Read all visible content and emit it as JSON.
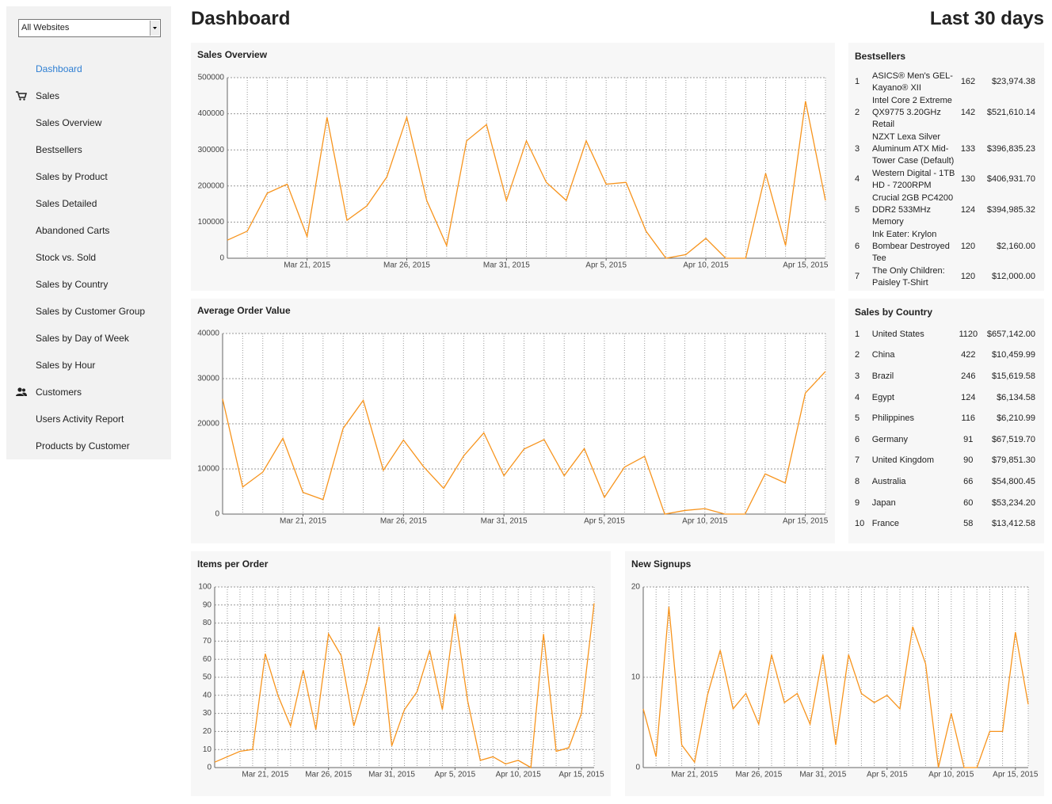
{
  "sidebar": {
    "website_select": "All Websites",
    "dashboard": "Dashboard",
    "sections": [
      {
        "title": "Sales",
        "items": [
          "Sales Overview",
          "Bestsellers",
          "Sales by Product",
          "Sales Detailed",
          "Abandoned Carts",
          "Stock vs. Sold",
          "Sales by Country",
          "Sales by Customer Group",
          "Sales by Day of Week",
          "Sales by Hour"
        ]
      },
      {
        "title": "Customers",
        "items": [
          "Users Activity Report",
          "Products by Customer"
        ]
      }
    ]
  },
  "header": {
    "title": "Dashboard",
    "period": "Last 30 days"
  },
  "chart_data": [
    {
      "type": "line",
      "title": "Sales Overview",
      "color": "#f7941d",
      "grid": true,
      "x": [
        "2015-03-17",
        "2015-03-18",
        "2015-03-19",
        "2015-03-20",
        "2015-03-21",
        "2015-03-22",
        "2015-03-23",
        "2015-03-24",
        "2015-03-25",
        "2015-03-26",
        "2015-03-27",
        "2015-03-28",
        "2015-03-29",
        "2015-03-30",
        "2015-03-31",
        "2015-04-01",
        "2015-04-02",
        "2015-04-03",
        "2015-04-04",
        "2015-04-05",
        "2015-04-06",
        "2015-04-07",
        "2015-04-08",
        "2015-04-09",
        "2015-04-10",
        "2015-04-11",
        "2015-04-12",
        "2015-04-13",
        "2015-04-14",
        "2015-04-15",
        "2015-04-16"
      ],
      "values": [
        50000,
        75000,
        180000,
        205000,
        60000,
        390000,
        105000,
        145000,
        225000,
        390000,
        160000,
        35000,
        325000,
        370000,
        160000,
        325000,
        210000,
        160000,
        325000,
        205000,
        210000,
        75000,
        0,
        10000,
        55000,
        0,
        0,
        235000,
        35000,
        435000,
        160000
      ],
      "xlim": [
        "2015-03-17",
        "2015-04-16"
      ],
      "xticks": [
        {
          "value": "2015-03-21",
          "label": "Mar 21, 2015"
        },
        {
          "value": "2015-03-26",
          "label": "Mar 26, 2015"
        },
        {
          "value": "2015-03-31",
          "label": "Mar 31, 2015"
        },
        {
          "value": "2015-04-05",
          "label": "Apr 5, 2015"
        },
        {
          "value": "2015-04-10",
          "label": "Apr 10, 2015"
        },
        {
          "value": "2015-04-15",
          "label": "Apr 15, 2015"
        }
      ],
      "ylim": [
        0,
        500000
      ],
      "yticks": [
        0,
        100000,
        200000,
        300000,
        400000,
        500000
      ]
    },
    {
      "type": "line",
      "title": "Average Order Value",
      "color": "#f7941d",
      "grid": true,
      "x": [
        "2015-03-17",
        "2015-03-18",
        "2015-03-19",
        "2015-03-20",
        "2015-03-21",
        "2015-03-22",
        "2015-03-23",
        "2015-03-24",
        "2015-03-25",
        "2015-03-26",
        "2015-03-27",
        "2015-03-28",
        "2015-03-29",
        "2015-03-30",
        "2015-03-31",
        "2015-04-01",
        "2015-04-02",
        "2015-04-03",
        "2015-04-04",
        "2015-04-05",
        "2015-04-06",
        "2015-04-07",
        "2015-04-08",
        "2015-04-09",
        "2015-04-10",
        "2015-04-11",
        "2015-04-12",
        "2015-04-13",
        "2015-04-14",
        "2015-04-15",
        "2015-04-16"
      ],
      "values": [
        25500,
        6000,
        9300,
        16800,
        4800,
        3200,
        19000,
        25200,
        9700,
        16400,
        10500,
        5700,
        12900,
        18000,
        8500,
        14400,
        16500,
        8500,
        14500,
        3700,
        10400,
        12800,
        0,
        800,
        1200,
        0,
        0,
        8900,
        6900,
        26800,
        31600
      ],
      "xlim": [
        "2015-03-17",
        "2015-04-16"
      ],
      "xticks": [
        {
          "value": "2015-03-21",
          "label": "Mar 21, 2015"
        },
        {
          "value": "2015-03-26",
          "label": "Mar 26, 2015"
        },
        {
          "value": "2015-03-31",
          "label": "Mar 31, 2015"
        },
        {
          "value": "2015-04-05",
          "label": "Apr 5, 2015"
        },
        {
          "value": "2015-04-10",
          "label": "Apr 10, 2015"
        },
        {
          "value": "2015-04-15",
          "label": "Apr 15, 2015"
        }
      ],
      "ylim": [
        0,
        40000
      ],
      "yticks": [
        0,
        10000,
        20000,
        30000,
        40000
      ]
    },
    {
      "type": "line",
      "title": "Items per Order",
      "color": "#f7941d",
      "grid": true,
      "x": [
        "2015-03-17",
        "2015-03-18",
        "2015-03-19",
        "2015-03-20",
        "2015-03-21",
        "2015-03-22",
        "2015-03-23",
        "2015-03-24",
        "2015-03-25",
        "2015-03-26",
        "2015-03-27",
        "2015-03-28",
        "2015-03-29",
        "2015-03-30",
        "2015-03-31",
        "2015-04-01",
        "2015-04-02",
        "2015-04-03",
        "2015-04-04",
        "2015-04-05",
        "2015-04-06",
        "2015-04-07",
        "2015-04-08",
        "2015-04-09",
        "2015-04-10",
        "2015-04-11",
        "2015-04-12",
        "2015-04-13",
        "2015-04-14",
        "2015-04-15",
        "2015-04-16"
      ],
      "values": [
        3,
        6,
        9,
        10,
        63,
        40,
        23,
        54,
        21,
        74,
        62,
        23,
        47,
        78,
        12,
        32,
        42,
        65,
        32,
        85,
        37,
        4,
        6,
        2,
        4,
        0,
        74,
        9,
        11,
        30,
        91
      ],
      "xlim": [
        "2015-03-17",
        "2015-04-16"
      ],
      "xticks": [
        {
          "value": "2015-03-21",
          "label": "Mar 21, 2015"
        },
        {
          "value": "2015-03-26",
          "label": "Mar 26, 2015"
        },
        {
          "value": "2015-03-31",
          "label": "Mar 31, 2015"
        },
        {
          "value": "2015-04-05",
          "label": "Apr 5, 2015"
        },
        {
          "value": "2015-04-10",
          "label": "Apr 10, 2015"
        },
        {
          "value": "2015-04-15",
          "label": "Apr 15, 2015"
        }
      ],
      "ylim": [
        0,
        100
      ],
      "yticks": [
        0,
        10,
        20,
        30,
        40,
        50,
        60,
        70,
        80,
        90,
        100
      ]
    },
    {
      "type": "line",
      "title": "New Signups",
      "color": "#f7941d",
      "grid": true,
      "x": [
        "2015-03-17",
        "2015-03-18",
        "2015-03-19",
        "2015-03-20",
        "2015-03-21",
        "2015-03-22",
        "2015-03-23",
        "2015-03-24",
        "2015-03-25",
        "2015-03-26",
        "2015-03-27",
        "2015-03-28",
        "2015-03-29",
        "2015-03-30",
        "2015-03-31",
        "2015-04-01",
        "2015-04-02",
        "2015-04-03",
        "2015-04-04",
        "2015-04-05",
        "2015-04-06",
        "2015-04-07",
        "2015-04-08",
        "2015-04-09",
        "2015-04-10",
        "2015-04-11",
        "2015-04-12",
        "2015-04-13",
        "2015-04-14",
        "2015-04-15",
        "2015-04-16"
      ],
      "values": [
        6.5,
        1.2,
        17.8,
        2.5,
        0.6,
        8,
        13,
        6.5,
        8.2,
        4.8,
        12.5,
        7.2,
        8.2,
        4.8,
        12.5,
        2.5,
        12.5,
        8.2,
        7.2,
        8,
        6.5,
        15.6,
        11.5,
        0,
        6,
        0,
        0,
        4,
        4,
        15,
        7
      ],
      "xlim": [
        "2015-03-17",
        "2015-04-16"
      ],
      "xticks": [
        {
          "value": "2015-03-21",
          "label": "Mar 21, 2015"
        },
        {
          "value": "2015-03-26",
          "label": "Mar 26, 2015"
        },
        {
          "value": "2015-03-31",
          "label": "Mar 31, 2015"
        },
        {
          "value": "2015-04-05",
          "label": "Apr 5, 2015"
        },
        {
          "value": "2015-04-10",
          "label": "Apr 10, 2015"
        },
        {
          "value": "2015-04-15",
          "label": "Apr 15, 2015"
        }
      ],
      "ylim": [
        0,
        20
      ],
      "yticks": [
        0,
        10,
        20
      ]
    }
  ],
  "bestsellers": {
    "title": "Bestsellers",
    "rows": [
      [
        1,
        "ASICS® Men's GEL-Kayano® XII",
        162,
        "$23,974.38"
      ],
      [
        2,
        "Intel Core 2 Extreme QX9775 3.20GHz Retail",
        142,
        "$521,610.14"
      ],
      [
        3,
        "NZXT Lexa Silver Aluminum ATX Mid-Tower Case (Default)",
        133,
        "$396,835.23"
      ],
      [
        4,
        "Western Digital - 1TB HD - 7200RPM",
        130,
        "$406,931.70"
      ],
      [
        5,
        "Crucial 2GB PC4200 DDR2 533MHz Memory",
        124,
        "$394,985.32"
      ],
      [
        6,
        "Ink Eater: Krylon Bombear Destroyed Tee",
        120,
        "$2,160.00"
      ],
      [
        7,
        "The Only Children: Paisley T-Shirt",
        120,
        "$12,000.00"
      ]
    ]
  },
  "sales_by_country": {
    "title": "Sales by Country",
    "rows": [
      [
        1,
        "United States",
        1120,
        "$657,142.00"
      ],
      [
        2,
        "China",
        422,
        "$10,459.99"
      ],
      [
        3,
        "Brazil",
        246,
        "$15,619.58"
      ],
      [
        4,
        "Egypt",
        124,
        "$6,134.58"
      ],
      [
        5,
        "Philippines",
        116,
        "$6,210.99"
      ],
      [
        6,
        "Germany",
        91,
        "$67,519.70"
      ],
      [
        7,
        "United Kingdom",
        90,
        "$79,851.30"
      ],
      [
        8,
        "Australia",
        66,
        "$54,800.45"
      ],
      [
        9,
        "Japan",
        60,
        "$53,234.20"
      ],
      [
        10,
        "France",
        58,
        "$13,412.58"
      ]
    ]
  }
}
